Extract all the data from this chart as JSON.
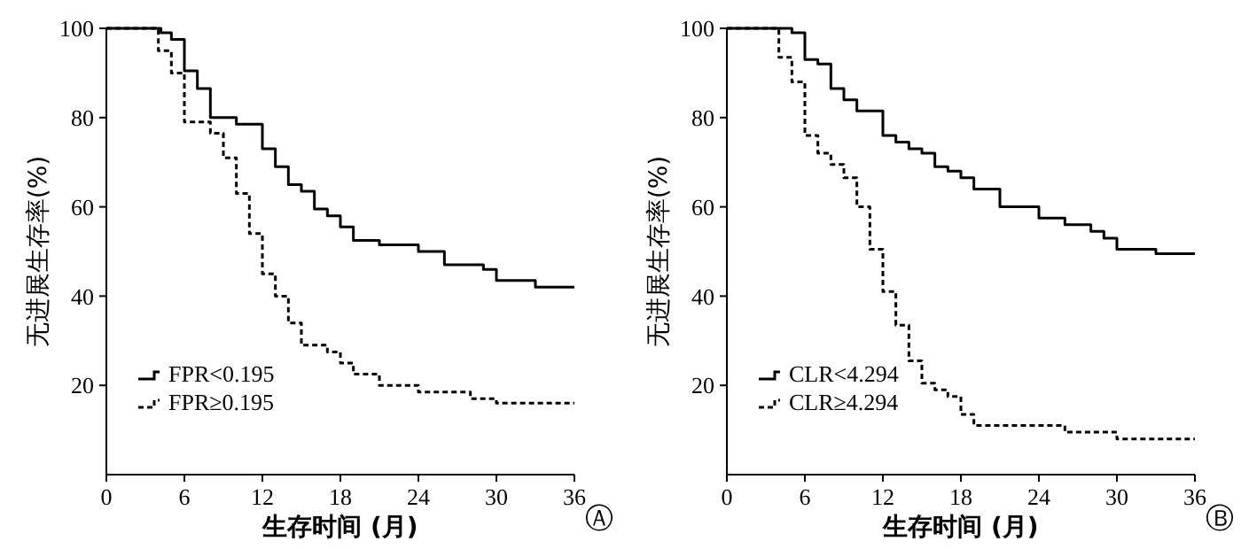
{
  "chart_data": [
    {
      "type": "step",
      "xlabel": "生存时间 (月)",
      "ylabel": "无进展生存率(%)",
      "annotations": [
        "Ⓐ"
      ],
      "xlim": [
        0,
        36
      ],
      "ylim": [
        0,
        100
      ],
      "xticks": [
        0,
        6,
        12,
        18,
        24,
        30,
        36
      ],
      "yticks": [
        20,
        40,
        60,
        80,
        100
      ],
      "grid": false,
      "legend": "bottom left",
      "series": [
        {
          "name": "FPR<0.195",
          "color": "#000000",
          "line_style": "solid",
          "x": [
            0,
            4.2,
            5,
            6,
            7,
            8,
            10,
            12,
            13,
            14,
            15,
            16,
            17,
            18,
            19,
            21,
            24,
            26,
            29,
            30,
            33,
            36
          ],
          "values": [
            100,
            99,
            97.5,
            90.5,
            86.5,
            80,
            78.5,
            73,
            69,
            65,
            63.5,
            59.5,
            58,
            55.5,
            52.5,
            51.5,
            50,
            47,
            46,
            43.5,
            42,
            42
          ]
        },
        {
          "name": "FPR≥0.195",
          "color": "#000000",
          "line_style": "dashed",
          "x": [
            0,
            4,
            5,
            6,
            8,
            9,
            10,
            11,
            12,
            13,
            14,
            15,
            17,
            18,
            19,
            21,
            24,
            28,
            30,
            36
          ],
          "values": [
            100,
            95,
            90,
            79,
            76.5,
            71,
            63,
            54,
            45,
            40,
            34,
            29,
            27.5,
            25,
            22.5,
            20,
            18.5,
            17,
            16,
            16
          ]
        }
      ]
    },
    {
      "type": "step",
      "xlabel": "生存时间 (月)",
      "ylabel": "无进展生存率(%)",
      "annotations": [
        "Ⓑ"
      ],
      "xlim": [
        0,
        36
      ],
      "ylim": [
        0,
        100
      ],
      "xticks": [
        0,
        6,
        12,
        18,
        24,
        30,
        36
      ],
      "yticks": [
        20,
        40,
        60,
        80,
        100
      ],
      "grid": false,
      "legend": "bottom left",
      "series": [
        {
          "name": "CLR<4.294",
          "color": "#000000",
          "line_style": "solid",
          "x": [
            0,
            5,
            6,
            7,
            8,
            9,
            10,
            12,
            13,
            14,
            15,
            16,
            17,
            18,
            19,
            21,
            24,
            26,
            28,
            29,
            30,
            33,
            36
          ],
          "values": [
            100,
            99,
            93,
            92,
            86.5,
            84,
            81.5,
            76,
            74.5,
            73,
            72,
            69,
            68,
            66.5,
            64,
            60,
            57.5,
            56,
            54.5,
            53,
            50.5,
            49.5,
            49.5
          ]
        },
        {
          "name": "CLR≥4.294",
          "color": "#000000",
          "line_style": "dashed",
          "x": [
            0,
            4,
            5,
            6,
            7,
            8,
            9,
            10,
            11,
            12,
            13,
            14,
            15,
            16,
            17,
            18,
            19,
            26,
            30,
            36
          ],
          "values": [
            100,
            93.5,
            88,
            76,
            72,
            69.5,
            66.5,
            60,
            50.5,
            41,
            33.5,
            25.5,
            20.5,
            19,
            17.5,
            13.5,
            11,
            9.5,
            8,
            8
          ]
        }
      ]
    }
  ]
}
